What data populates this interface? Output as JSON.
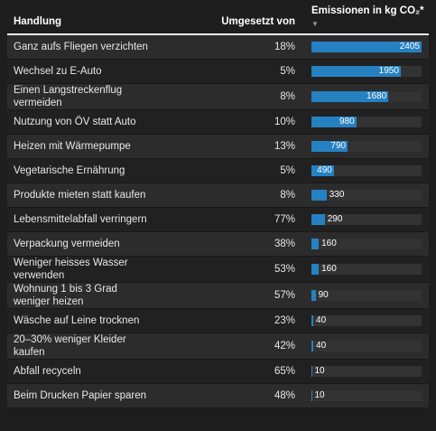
{
  "table": {
    "headers": [
      "Handlung",
      "Umgesetzt von",
      "Emissionen in kg CO₂*"
    ],
    "rows": [
      [
        "Ganz aufs Fliegen verzichten",
        "18%",
        2405
      ],
      [
        "Wechsel zu E-Auto",
        "5%",
        1950
      ],
      [
        "Einen Langstreckenflug vermeiden",
        "8%",
        1680
      ],
      [
        "Nutzung von ÖV statt Auto",
        "10%",
        980
      ],
      [
        "Heizen mit Wärmepumpe",
        "13%",
        790
      ],
      [
        "Vegetarische Ernährung",
        "5%",
        490
      ],
      [
        "Produkte mieten statt kaufen",
        "8%",
        330
      ],
      [
        "Lebensmittelabfall verringern",
        "77%",
        290
      ],
      [
        "Verpackung vermeiden",
        "38%",
        160
      ],
      [
        "Weniger heisses Wasser verwenden",
        "53%",
        160
      ],
      [
        "Wohnung 1 bis 3 Grad weniger heizen",
        "57%",
        90
      ],
      [
        "Wäsche auf Leine trocknen",
        "23%",
        40
      ],
      [
        "20–30% weniger Kleider kaufen",
        "42%",
        40
      ],
      [
        "Abfall recyceln",
        "65%",
        10
      ],
      [
        "Beim Drucken Papier sparen",
        "48%",
        10
      ]
    ]
  }
}
